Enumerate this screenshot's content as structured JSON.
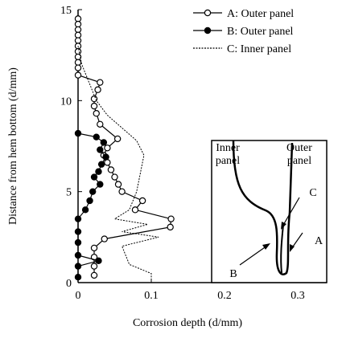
{
  "chart_data": {
    "type": "line",
    "x_label": "Corrosion depth (d/mm)",
    "y_label": "Distance from hem bottom (d/mm)",
    "xlim": [
      0,
      0.3
    ],
    "xticks": [
      0,
      0.1,
      0.2,
      0.3
    ],
    "ylim": [
      0,
      15
    ],
    "yticks": [
      0,
      5,
      10,
      15
    ],
    "legend": "top-right",
    "series": [
      {
        "name": "A: Outer panel",
        "color": "#000000",
        "marker": "open",
        "dash": "solid",
        "x": [
          0,
          0,
          0,
          0,
          0,
          0,
          0,
          0,
          0,
          0,
          0,
          0.03,
          0.027,
          0.022,
          0.022,
          0.025,
          0.03,
          0.054,
          0.04,
          0.035,
          0.04,
          0.045,
          0.05,
          0.055,
          0.06,
          0.088,
          0.078,
          0.127,
          0.126,
          0.036,
          0.022,
          0.022,
          0.022,
          0.022
        ],
        "values": [
          14.5,
          14.2,
          13.9,
          13.6,
          13.3,
          13.0,
          12.7,
          12.4,
          12.1,
          11.8,
          11.4,
          11.0,
          10.6,
          10.1,
          9.7,
          9.3,
          8.7,
          7.9,
          7.4,
          7.0,
          6.6,
          6.2,
          5.8,
          5.4,
          5.0,
          4.5,
          4.0,
          3.5,
          3.05,
          2.4,
          1.9,
          1.4,
          0.9,
          0.4
        ]
      },
      {
        "name": "B: Outer panel",
        "color": "#000000",
        "marker": "filled",
        "dash": "solid",
        "x": [
          0,
          0,
          0.028,
          0,
          0,
          0,
          0,
          0.01,
          0.016,
          0.02,
          0.03,
          0.022,
          0.028,
          0.032,
          0.038,
          0.03,
          0.035,
          0.025,
          0
        ],
        "values": [
          0.3,
          0.9,
          1.2,
          1.5,
          2.2,
          2.8,
          3.5,
          4.0,
          4.5,
          5.0,
          5.4,
          5.8,
          6.1,
          6.5,
          6.9,
          7.3,
          7.7,
          8.0,
          8.2
        ]
      },
      {
        "name": "C: Inner panel",
        "color": "#000000",
        "marker": "none",
        "dash": "dotted",
        "x": [
          0,
          0.005,
          0.015,
          0.025,
          0.04,
          0.06,
          0.08,
          0.09,
          0.085,
          0.08,
          0.07,
          0.05,
          0.095,
          0.06,
          0.11,
          0.06,
          0.065,
          0.07,
          0.1,
          0.1,
          null,
          0,
          0.2
        ],
        "values": [
          13.0,
          12.0,
          11.0,
          10.0,
          9.2,
          8.5,
          7.8,
          7.0,
          6.0,
          5.0,
          4.0,
          3.5,
          3.2,
          2.8,
          2.5,
          2.0,
          1.5,
          1.0,
          0.5,
          0.1,
          null,
          0,
          0
        ]
      }
    ],
    "inset_labels": [
      "Inner panel",
      "Outer panel",
      "A",
      "B",
      "C"
    ]
  }
}
